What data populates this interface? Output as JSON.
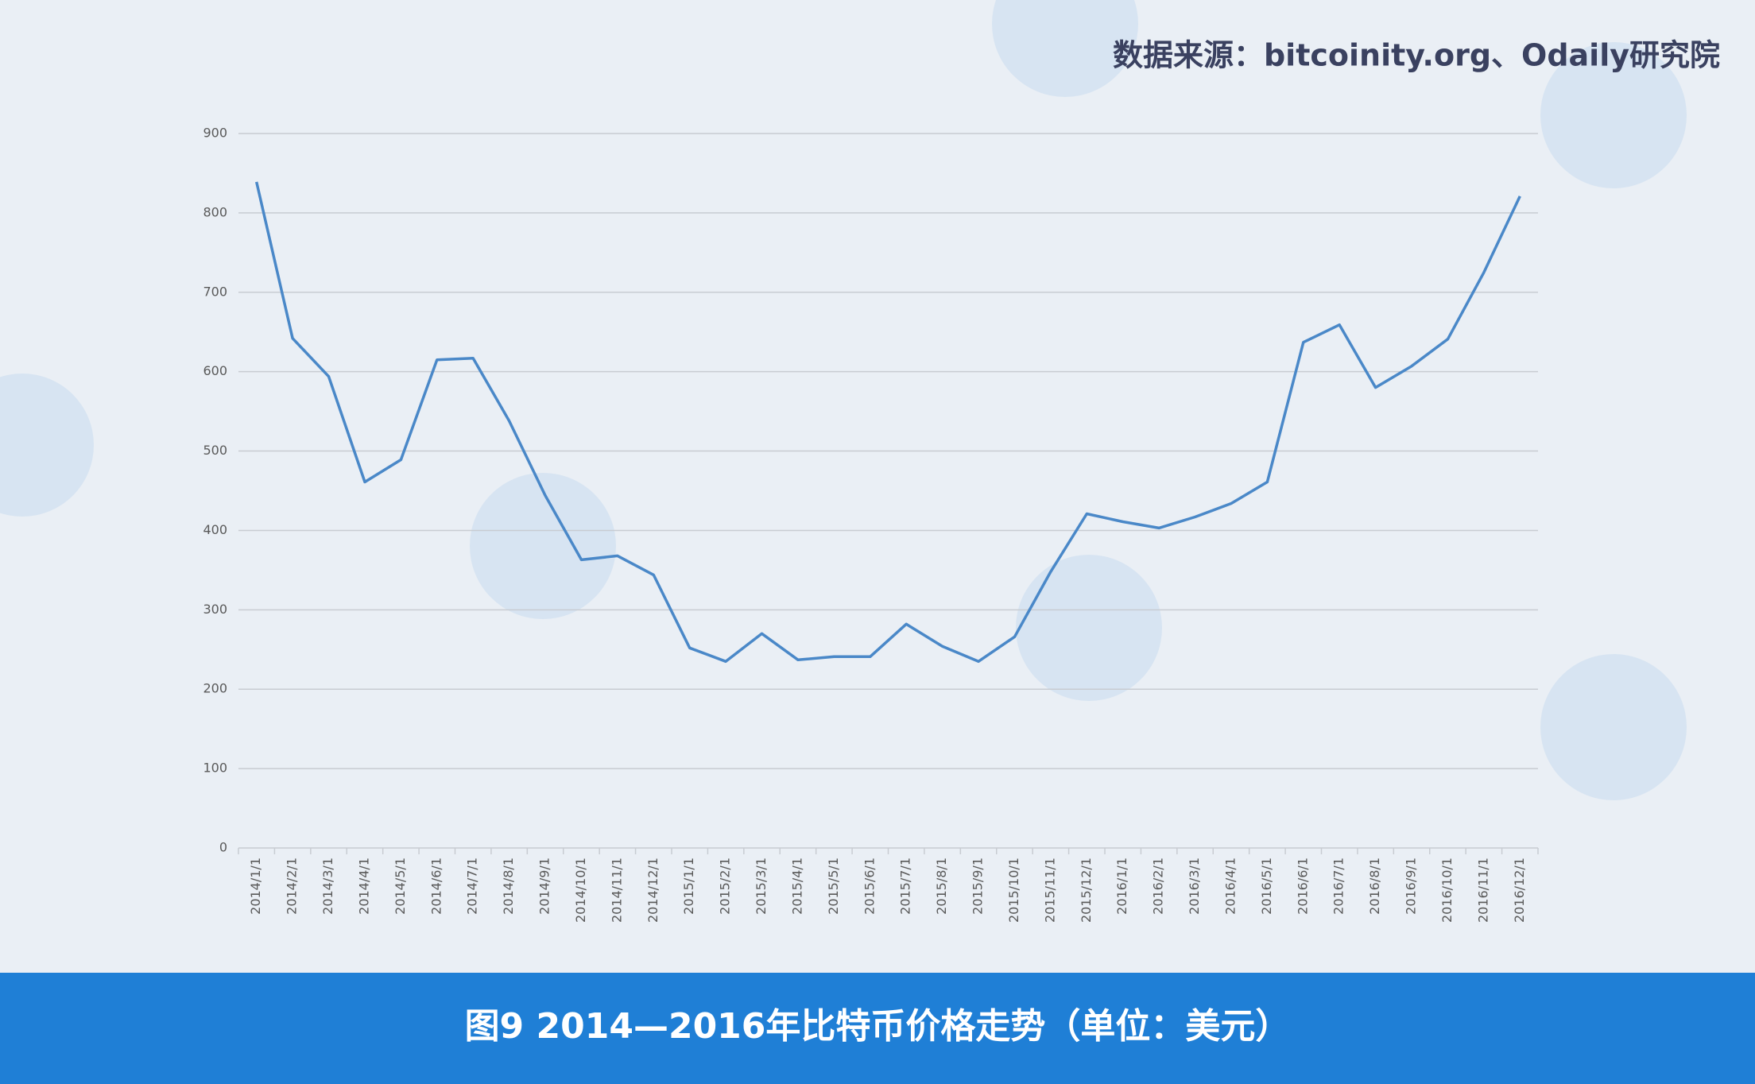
{
  "source": "数据来源：bitcoinity.org、Odaily研究院",
  "caption": "图9  2014—2016年比特币价格走势（单位：美元）",
  "chart_data": {
    "type": "line",
    "categories": [
      "2014/1/1",
      "2014/2/1",
      "2014/3/1",
      "2014/4/1",
      "2014/5/1",
      "2014/6/1",
      "2014/7/1",
      "2014/8/1",
      "2014/9/1",
      "2014/10/1",
      "2014/11/1",
      "2014/12/1",
      "2015/1/1",
      "2015/2/1",
      "2015/3/1",
      "2015/4/1",
      "2015/5/1",
      "2015/6/1",
      "2015/7/1",
      "2015/8/1",
      "2015/9/1",
      "2015/10/1",
      "2015/11/1",
      "2015/12/1",
      "2016/1/1",
      "2016/2/1",
      "2016/3/1",
      "2016/4/1",
      "2016/5/1",
      "2016/6/1",
      "2016/7/1",
      "2016/8/1",
      "2016/9/1",
      "2016/10/1",
      "2016/11/1",
      "2016/12/1"
    ],
    "values": [
      839,
      642,
      594,
      461,
      489,
      615,
      617,
      538,
      444,
      363,
      368,
      344,
      252,
      235,
      270,
      237,
      241,
      241,
      282,
      254,
      235,
      266,
      348,
      421,
      411,
      403,
      417,
      434,
      461,
      637,
      659,
      580,
      607,
      641,
      725,
      821
    ],
    "color": "#4a88c8",
    "ylim": [
      0,
      900
    ],
    "yticks": [
      0,
      100,
      200,
      300,
      400,
      500,
      600,
      700,
      800,
      900
    ],
    "grid": true
  }
}
